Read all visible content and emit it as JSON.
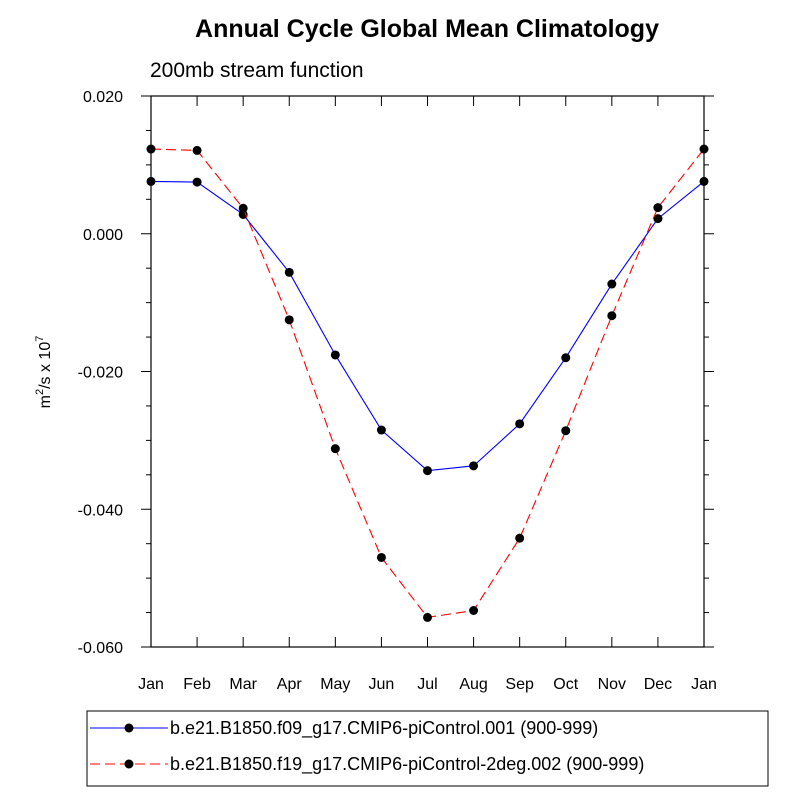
{
  "chart_data": {
    "type": "line",
    "title": "Annual Cycle Global Mean Climatology",
    "subtitle": "200mb stream function",
    "ylabel": {
      "base": "m",
      "base_sup": "2",
      "mid": "/s x 10",
      "exp_sup": "7"
    },
    "xlabel": "",
    "categories": [
      "Jan",
      "Feb",
      "Mar",
      "Apr",
      "May",
      "Jun",
      "Jul",
      "Aug",
      "Sep",
      "Oct",
      "Nov",
      "Dec",
      "Jan"
    ],
    "ylim": [
      -0.06,
      0.02
    ],
    "yticks": [
      0.02,
      0.0,
      -0.02,
      -0.04,
      -0.06
    ],
    "ytick_labels": [
      "0.020",
      "0.000",
      "-0.020",
      "-0.040",
      "-0.060"
    ],
    "series": [
      {
        "name": "b.e21.B1850.f09_g17.CMIP6-piControl.001 (900-999)",
        "color": "#0000ff",
        "dash": "solid",
        "values": [
          0.0076,
          0.0075,
          0.0028,
          -0.0056,
          -0.0176,
          -0.0285,
          -0.0344,
          -0.0337,
          -0.0276,
          -0.018,
          -0.0073,
          0.0022,
          0.0076
        ]
      },
      {
        "name": "b.e21.B1850.f19_g17.CMIP6-piControl-2deg.002 (900-999)",
        "color": "#ff0000",
        "dash": "dashed",
        "values": [
          0.0123,
          0.0121,
          0.0037,
          -0.0125,
          -0.0312,
          -0.047,
          -0.0557,
          -0.0547,
          -0.0442,
          -0.0286,
          -0.0119,
          0.0038,
          0.0123
        ]
      }
    ]
  }
}
